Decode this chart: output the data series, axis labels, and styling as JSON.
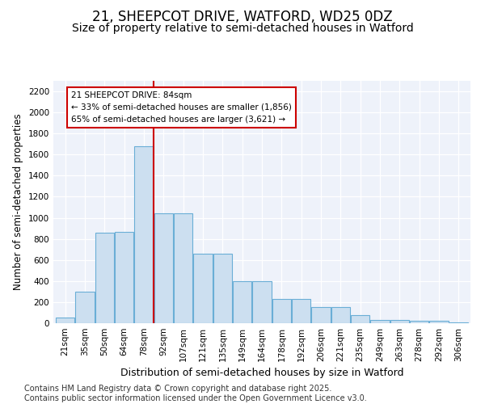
{
  "title1": "21, SHEEPCOT DRIVE, WATFORD, WD25 0DZ",
  "title2": "Size of property relative to semi-detached houses in Watford",
  "xlabel": "Distribution of semi-detached houses by size in Watford",
  "ylabel": "Number of semi-detached properties",
  "categories": [
    "21sqm",
    "35sqm",
    "50sqm",
    "64sqm",
    "78sqm",
    "92sqm",
    "107sqm",
    "121sqm",
    "135sqm",
    "149sqm",
    "164sqm",
    "178sqm",
    "192sqm",
    "206sqm",
    "221sqm",
    "235sqm",
    "249sqm",
    "263sqm",
    "278sqm",
    "292sqm",
    "306sqm"
  ],
  "bar_values": [
    50,
    300,
    860,
    870,
    1680,
    1040,
    1040,
    660,
    660,
    400,
    395,
    230,
    228,
    155,
    153,
    80,
    30,
    28,
    25,
    20,
    10
  ],
  "bar_color": "#ccdff0",
  "bar_edge_color": "#6aaed6",
  "annotation_box_color": "#cc0000",
  "property_line_color": "#cc0000",
  "property_bin_index": 4,
  "annotation_title": "21 SHEEPCOT DRIVE: 84sqm",
  "annotation_line1": "← 33% of semi-detached houses are smaller (1,856)",
  "annotation_line2": "65% of semi-detached houses are larger (3,621) →",
  "footer1": "Contains HM Land Registry data © Crown copyright and database right 2025.",
  "footer2": "Contains public sector information licensed under the Open Government Licence v3.0.",
  "ylim": [
    0,
    2300
  ],
  "yticks": [
    0,
    200,
    400,
    600,
    800,
    1000,
    1200,
    1400,
    1600,
    1800,
    2000,
    2200
  ],
  "title1_fontsize": 12,
  "title2_fontsize": 10,
  "xlabel_fontsize": 9,
  "ylabel_fontsize": 8.5,
  "tick_fontsize": 7.5,
  "footer_fontsize": 7,
  "background_color": "#eef2fa"
}
